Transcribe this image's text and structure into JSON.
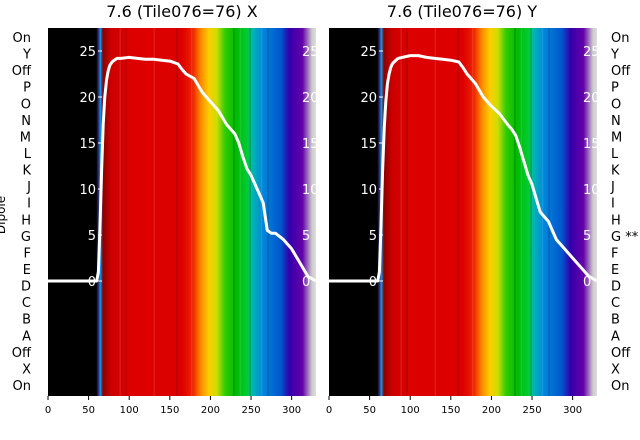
{
  "chart_data": [
    {
      "type": "heatmap",
      "title": "7.6 (Tile076=76) X",
      "ylabel": "Dipole",
      "x_ticks": [
        0,
        50,
        100,
        150,
        200,
        250,
        300
      ],
      "xlim": [
        0,
        330
      ],
      "dipole_labels": [
        "On",
        "Y",
        "Off",
        "P",
        "O",
        "N",
        "M",
        "L",
        "K",
        "J",
        "I",
        "H",
        "G",
        "F",
        "E",
        "D",
        "C",
        "B",
        "A",
        "Off",
        "X",
        "On"
      ],
      "overlay_ticks": [
        0,
        5,
        10,
        15,
        20,
        25
      ],
      "overlay_ylim": [
        -12.5,
        27.5
      ],
      "grid": false,
      "overlay_line": {
        "x": [
          0,
          10,
          20,
          30,
          40,
          50,
          60,
          62,
          64,
          66,
          68,
          70,
          72,
          74,
          76,
          78,
          80,
          85,
          90,
          100,
          110,
          120,
          130,
          140,
          150,
          160,
          165,
          170,
          180,
          190,
          200,
          210,
          220,
          225,
          230,
          235,
          240,
          245,
          250,
          255,
          260,
          265,
          270,
          275,
          280,
          290,
          300,
          310,
          320,
          330
        ],
        "y": [
          0,
          0,
          0,
          0,
          0,
          0,
          0,
          1,
          6,
          12,
          17,
          20,
          21.8,
          22.8,
          23.4,
          23.7,
          23.9,
          24.2,
          24.2,
          24.3,
          24.2,
          24.1,
          24.1,
          24,
          23.9,
          23.6,
          23,
          22.5,
          22,
          20.5,
          19.5,
          18.5,
          17,
          16.5,
          16,
          15,
          13.5,
          12.2,
          11.5,
          10.5,
          9.5,
          8.5,
          5.5,
          5.2,
          5.2,
          4.5,
          3.5,
          2,
          0.5,
          0
        ]
      }
    },
    {
      "type": "heatmap",
      "title": "7.6 (Tile076=76) Y",
      "ylabel": "",
      "x_ticks": [
        0,
        50,
        100,
        150,
        200,
        250,
        300
      ],
      "xlim": [
        0,
        330
      ],
      "dipole_labels": [
        "On",
        "Y",
        "Off",
        "P",
        "O",
        "N",
        "M",
        "L",
        "K",
        "J",
        "I",
        "H",
        "G **",
        "F",
        "E",
        "D",
        "C",
        "B",
        "A",
        "Off",
        "X",
        "On"
      ],
      "overlay_ticks": [
        0,
        5,
        10,
        15,
        20,
        25
      ],
      "overlay_ylim": [
        -12.5,
        27.5
      ],
      "grid": false,
      "overlay_line": {
        "x": [
          0,
          10,
          20,
          30,
          40,
          50,
          60,
          62,
          64,
          66,
          68,
          70,
          72,
          74,
          76,
          78,
          80,
          85,
          90,
          100,
          110,
          120,
          130,
          140,
          150,
          160,
          165,
          170,
          180,
          190,
          200,
          210,
          220,
          225,
          230,
          235,
          240,
          245,
          250,
          255,
          260,
          265,
          270,
          275,
          280,
          290,
          300,
          310,
          320,
          330
        ],
        "y": [
          0,
          0,
          0,
          0,
          0,
          0,
          0,
          1,
          6,
          12,
          16.5,
          19.5,
          21.5,
          22.5,
          23.2,
          23.6,
          23.8,
          24.2,
          24.3,
          24.5,
          24.5,
          24.3,
          24.2,
          24.1,
          24.0,
          23.8,
          23.2,
          22.5,
          21.5,
          20,
          19,
          18.2,
          17,
          16.5,
          15.8,
          14.5,
          13,
          11.5,
          10.5,
          9,
          7.5,
          7,
          6.5,
          5.5,
          4.5,
          3.5,
          2.5,
          1.5,
          0.5,
          0
        ]
      }
    }
  ]
}
